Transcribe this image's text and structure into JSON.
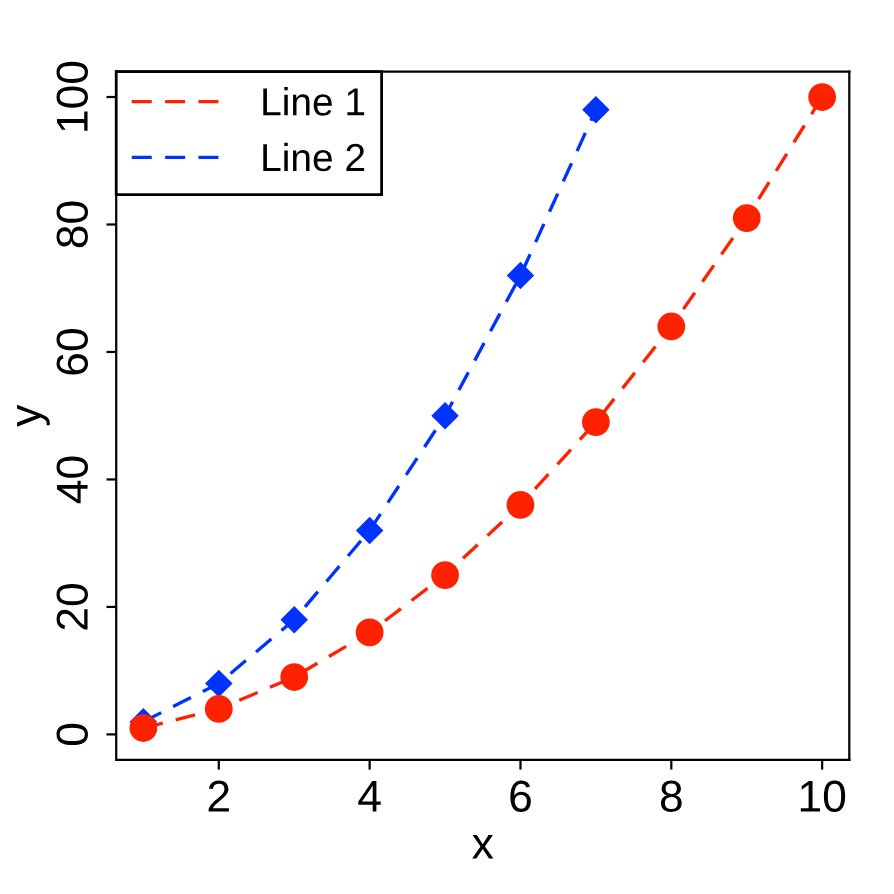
{
  "chart_data": {
    "type": "line",
    "xlabel": "x",
    "ylabel": "y",
    "xlim": [
      0.64,
      10.36
    ],
    "ylim": [
      -4,
      104
    ],
    "xticks": [
      2,
      4,
      6,
      8,
      10
    ],
    "yticks": [
      0,
      20,
      40,
      60,
      80,
      100
    ],
    "grid": false,
    "legend": "top left",
    "series": [
      {
        "name": "Line 1",
        "color": "#ff2200",
        "marker": "circle",
        "line_style": "dashed",
        "x": [
          1,
          2,
          3,
          4,
          5,
          6,
          7,
          8,
          9,
          10
        ],
        "values": [
          1,
          4,
          9,
          16,
          25,
          36,
          49,
          64,
          81,
          100
        ]
      },
      {
        "name": "Line 2",
        "color": "#0033ff",
        "marker": "diamond",
        "line_style": "dashed",
        "x": [
          1,
          2,
          3,
          4,
          5,
          6,
          7
        ],
        "values": [
          2,
          8,
          18,
          32,
          50,
          72,
          98
        ]
      }
    ]
  }
}
